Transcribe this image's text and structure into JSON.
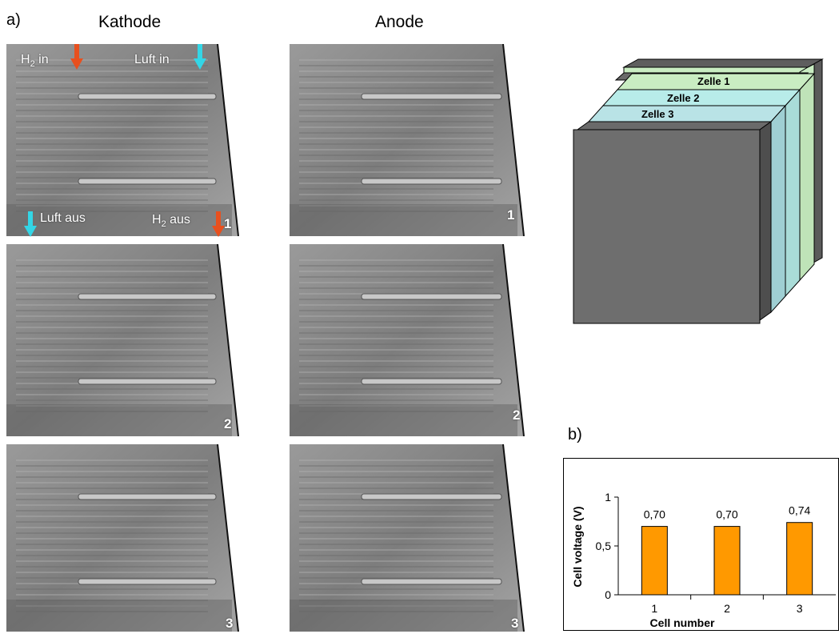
{
  "panel_a": {
    "label": "a)",
    "col_kathode": "Kathode",
    "col_anode": "Anode",
    "annotations": {
      "h2_in": "H",
      "h2_in_sub": "2",
      "h2_in_tail": " in",
      "luft_in": "Luft in",
      "luft_aus": "Luft aus",
      "h2_aus": "H",
      "h2_aus_sub": "2",
      "h2_aus_tail": " aus"
    },
    "row_numbers": [
      "1",
      "2",
      "3"
    ],
    "colors": {
      "h2_arrow": "#e8501e",
      "air_arrow": "#33d6e6"
    }
  },
  "stack": {
    "cells": [
      "Zelle 1",
      "Zelle 2",
      "Zelle 3"
    ],
    "colors": {
      "zelle1": "#c9edc2",
      "zelle2": "#b8ece9",
      "zelle3": "#b9e3e6",
      "dark": "#6e6e6e"
    }
  },
  "panel_b": {
    "label": "b)"
  },
  "chart_data": {
    "type": "bar",
    "categories": [
      "1",
      "2",
      "3"
    ],
    "values": [
      0.7,
      0.7,
      0.74
    ],
    "data_labels": [
      "0,70",
      "0,70",
      "0,74"
    ],
    "ylim": [
      0,
      1
    ],
    "yticks": [
      "0",
      "0,5",
      "1"
    ],
    "ytick_values": [
      0,
      0.5,
      1
    ],
    "xlabel": "Cell number",
    "ylabel": "Cell voltage (V)",
    "bar_color": "#ff9900",
    "grid": false
  }
}
